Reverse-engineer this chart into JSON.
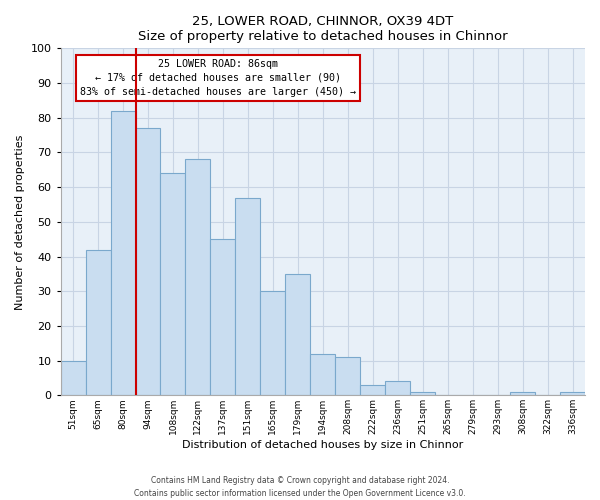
{
  "title": "25, LOWER ROAD, CHINNOR, OX39 4DT",
  "subtitle": "Size of property relative to detached houses in Chinnor",
  "xlabel": "Distribution of detached houses by size in Chinnor",
  "ylabel": "Number of detached properties",
  "bar_labels": [
    "51sqm",
    "65sqm",
    "80sqm",
    "94sqm",
    "108sqm",
    "122sqm",
    "137sqm",
    "151sqm",
    "165sqm",
    "179sqm",
    "194sqm",
    "208sqm",
    "222sqm",
    "236sqm",
    "251sqm",
    "265sqm",
    "279sqm",
    "293sqm",
    "308sqm",
    "322sqm",
    "336sqm"
  ],
  "bar_heights": [
    10,
    42,
    82,
    77,
    64,
    68,
    45,
    57,
    30,
    35,
    12,
    11,
    3,
    4,
    1,
    0,
    0,
    0,
    1,
    0,
    1
  ],
  "bar_color": "#c9ddf0",
  "bar_edge_color": "#7aa8cc",
  "vline_color": "#cc0000",
  "vline_x": 2.5,
  "annotation_title": "25 LOWER ROAD: 86sqm",
  "annotation_line1": "← 17% of detached houses are smaller (90)",
  "annotation_line2": "83% of semi-detached houses are larger (450) →",
  "annotation_box_facecolor": "#ffffff",
  "annotation_box_edgecolor": "#cc0000",
  "ylim": [
    0,
    100
  ],
  "yticks": [
    0,
    10,
    20,
    30,
    40,
    50,
    60,
    70,
    80,
    90,
    100
  ],
  "footer1": "Contains HM Land Registry data © Crown copyright and database right 2024.",
  "footer2": "Contains public sector information licensed under the Open Government Licence v3.0.",
  "plot_bg_color": "#e8f0f8",
  "fig_bg_color": "#ffffff",
  "grid_color": "#c8d4e4",
  "spine_color": "#aaaaaa"
}
